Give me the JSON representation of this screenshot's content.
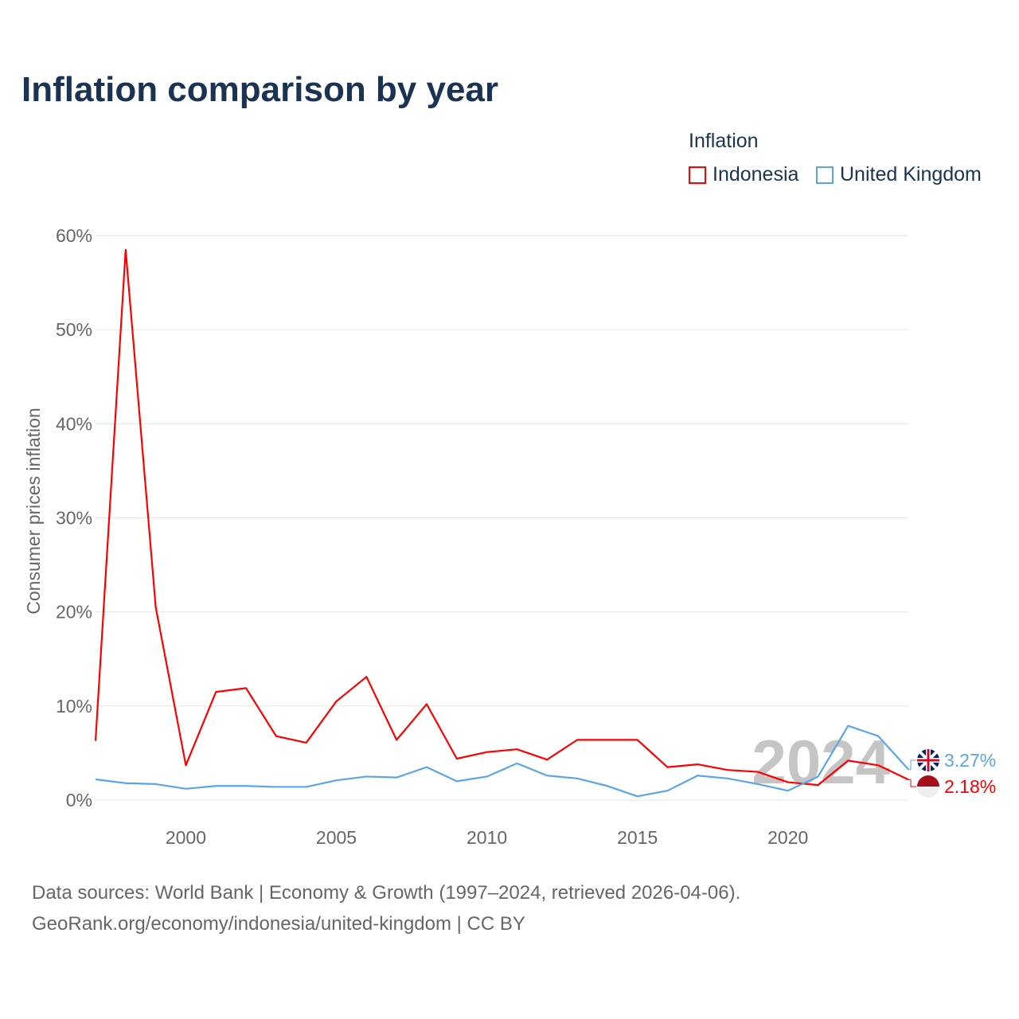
{
  "title": "Inflation comparison by year",
  "legend": {
    "title": "Inflation",
    "items": [
      {
        "name": "Indonesia",
        "color": "#ff0000"
      },
      {
        "name": "United Kingdom",
        "color": "#5aa5ea"
      }
    ]
  },
  "sources": [
    "Data sources: World Bank | Economy & Growth (1997–2024, retrieved 2026-04-06).",
    "GeoRank.org/economy/indonesia/united-kingdom | CC BY"
  ],
  "chart_data": {
    "type": "line",
    "ylabel": "Consumer prices inflation",
    "xlabel": "",
    "ylim": [
      0,
      60
    ],
    "xlim": [
      1997,
      2024
    ],
    "yticks": [
      "0%",
      "10%",
      "20%",
      "30%",
      "40%",
      "50%",
      "60%"
    ],
    "xticks": [
      "2000",
      "2005",
      "2010",
      "2015",
      "2020"
    ],
    "year_watermark": "2024",
    "x": [
      1997,
      1998,
      1999,
      2000,
      2001,
      2002,
      2003,
      2004,
      2005,
      2006,
      2007,
      2008,
      2009,
      2010,
      2011,
      2012,
      2013,
      2014,
      2015,
      2016,
      2017,
      2018,
      2019,
      2020,
      2021,
      2022,
      2023,
      2024
    ],
    "series": [
      {
        "name": "Indonesia",
        "color": "#ff0000",
        "end_label": "2.18%",
        "values": [
          6.3,
          58.5,
          20.5,
          3.7,
          11.5,
          11.9,
          6.8,
          6.1,
          10.5,
          13.1,
          6.4,
          10.2,
          4.4,
          5.1,
          5.4,
          4.3,
          6.4,
          6.4,
          6.4,
          3.5,
          3.8,
          3.2,
          3.0,
          1.9,
          1.6,
          4.2,
          3.7,
          2.18
        ]
      },
      {
        "name": "United Kingdom",
        "color": "#5aa5ea",
        "end_label": "3.27%",
        "values": [
          2.2,
          1.8,
          1.7,
          1.2,
          1.5,
          1.5,
          1.4,
          1.4,
          2.1,
          2.5,
          2.4,
          3.5,
          2.0,
          2.5,
          3.9,
          2.6,
          2.3,
          1.5,
          0.4,
          1.0,
          2.6,
          2.3,
          1.7,
          1.0,
          2.5,
          7.9,
          6.8,
          3.27
        ]
      }
    ]
  }
}
